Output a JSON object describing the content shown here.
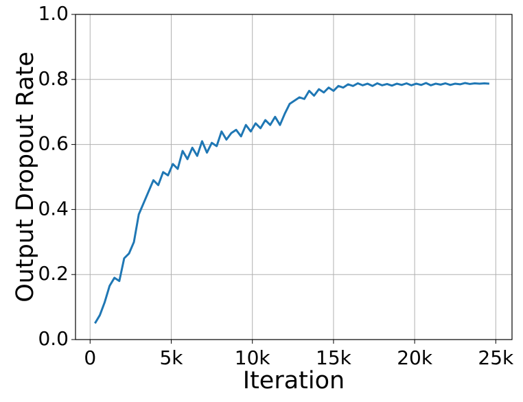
{
  "chart_data": {
    "type": "line",
    "xlabel": "Iteration",
    "ylabel": "Output Dropout Rate",
    "x": [
      300,
      600,
      900,
      1200,
      1500,
      1800,
      2100,
      2400,
      2700,
      3000,
      3300,
      3600,
      3900,
      4200,
      4500,
      4800,
      5100,
      5400,
      5700,
      6000,
      6300,
      6600,
      6900,
      7200,
      7500,
      7800,
      8100,
      8400,
      8700,
      9000,
      9300,
      9600,
      9900,
      10200,
      10500,
      10800,
      11100,
      11400,
      11700,
      12000,
      12300,
      12600,
      12900,
      13200,
      13500,
      13800,
      14100,
      14400,
      14700,
      15000,
      15300,
      15600,
      15900,
      16200,
      16500,
      16800,
      17100,
      17400,
      17700,
      18000,
      18300,
      18600,
      18900,
      19200,
      19500,
      19800,
      20100,
      20400,
      20700,
      21000,
      21300,
      21600,
      21900,
      22200,
      22500,
      22800,
      23100,
      23400,
      23700,
      24000,
      24300,
      24600
    ],
    "series": [
      {
        "color": "#1f77b4",
        "values": [
          0.05,
          0.075,
          0.115,
          0.165,
          0.19,
          0.18,
          0.25,
          0.265,
          0.3,
          0.385,
          0.42,
          0.455,
          0.49,
          0.475,
          0.515,
          0.505,
          0.54,
          0.525,
          0.58,
          0.555,
          0.59,
          0.565,
          0.61,
          0.575,
          0.605,
          0.595,
          0.64,
          0.615,
          0.635,
          0.645,
          0.625,
          0.66,
          0.64,
          0.665,
          0.65,
          0.675,
          0.66,
          0.685,
          0.66,
          0.695,
          0.725,
          0.735,
          0.745,
          0.74,
          0.765,
          0.75,
          0.77,
          0.76,
          0.775,
          0.765,
          0.78,
          0.775,
          0.785,
          0.78,
          0.788,
          0.782,
          0.787,
          0.78,
          0.788,
          0.782,
          0.786,
          0.781,
          0.787,
          0.783,
          0.788,
          0.782,
          0.787,
          0.783,
          0.789,
          0.782,
          0.787,
          0.784,
          0.788,
          0.783,
          0.787,
          0.785,
          0.789,
          0.786,
          0.788,
          0.787,
          0.788,
          0.787
        ]
      }
    ],
    "xlim": [
      -900,
      26000
    ],
    "xticks": [
      0,
      {
        "value": 5000,
        "label": "5k"
      },
      {
        "value": 10000,
        "label": "10k"
      },
      {
        "value": 15000,
        "label": "15k"
      },
      {
        "value": 20000,
        "label": "20k"
      },
      {
        "value": 25000,
        "label": "25k"
      }
    ],
    "ylim": [
      0,
      1
    ],
    "yticks": [
      {
        "value": 0,
        "label": "0.0"
      },
      0.2,
      0.4,
      0.6,
      0.8,
      {
        "value": 1,
        "label": "1.0"
      }
    ],
    "grid": true
  }
}
